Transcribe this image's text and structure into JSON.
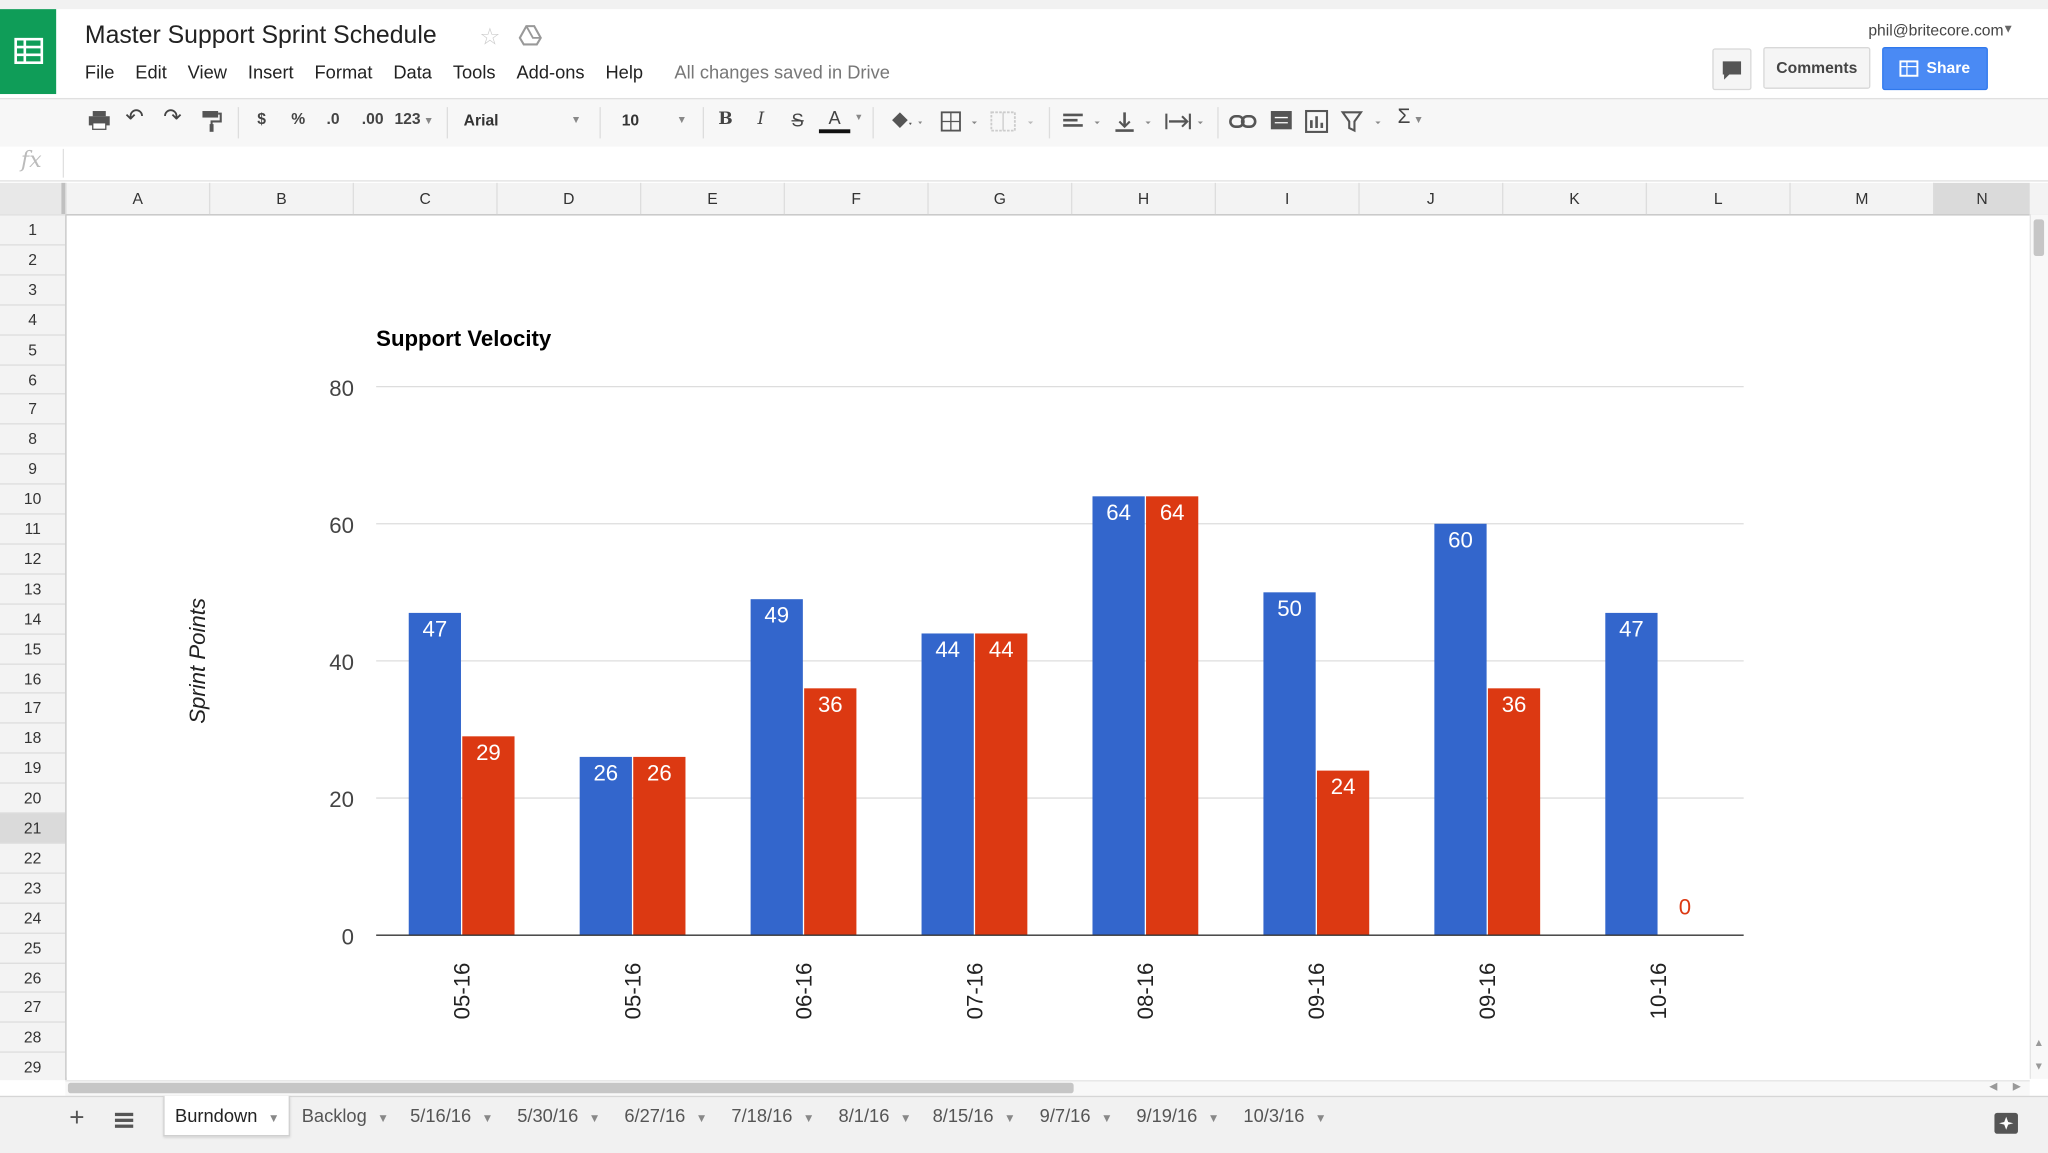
{
  "app": {
    "doc_title": "Master Support Sprint Schedule",
    "user_email": "phil@britecore.com",
    "save_status": "All changes saved in Drive",
    "comments_label": "Comments",
    "share_label": "Share",
    "menus": [
      "File",
      "Edit",
      "View",
      "Insert",
      "Format",
      "Data",
      "Tools",
      "Add-ons",
      "Help"
    ]
  },
  "toolbar": {
    "currency": "$",
    "percent": "%",
    "decrease_decimals": ".0",
    "increase_decimals": ".00",
    "more_formats": "123",
    "font": "Arial",
    "font_size": "10",
    "bold": "B",
    "italic": "I",
    "strikethrough": "S",
    "text_color": "A",
    "function": "Σ"
  },
  "formula_bar": {
    "fx": "fx",
    "value": ""
  },
  "grid": {
    "columns": [
      "A",
      "B",
      "C",
      "D",
      "E",
      "F",
      "G",
      "H",
      "I",
      "J",
      "K",
      "L",
      "M",
      "N"
    ],
    "rows": [
      "1",
      "2",
      "3",
      "4",
      "5",
      "6",
      "7",
      "8",
      "9",
      "10",
      "11",
      "12",
      "13",
      "14",
      "15",
      "16",
      "17",
      "18",
      "19",
      "20",
      "21",
      "22",
      "23",
      "24",
      "25",
      "26",
      "27",
      "28",
      "29"
    ],
    "selected_row": "21",
    "selected_column": "N"
  },
  "sheets": {
    "add_icon": "+",
    "tabs": [
      "Burndown",
      "Backlog",
      "5/16/16",
      "5/30/16",
      "6/27/16",
      "7/18/16",
      "8/1/16",
      "8/15/16",
      "9/7/16",
      "9/19/16",
      "10/3/16"
    ],
    "active": "Burndown"
  },
  "chart_data": {
    "type": "bar",
    "title": "Support Velocity",
    "ylabel": "Sprint Points",
    "xlabel": "",
    "ylim": [
      0,
      80
    ],
    "yticks": [
      0,
      20,
      40,
      60,
      80
    ],
    "categories": [
      "05-16",
      "05-16",
      "06-16",
      "07-16",
      "08-16",
      "09-16",
      "09-16",
      "10-16"
    ],
    "series": [
      {
        "color": "#3366cc",
        "values": [
          47,
          26,
          49,
          44,
          64,
          50,
          60,
          47
        ]
      },
      {
        "color": "#dc3912",
        "values": [
          29,
          26,
          36,
          44,
          64,
          24,
          36,
          0
        ]
      }
    ],
    "grid": true,
    "legend": "none"
  }
}
